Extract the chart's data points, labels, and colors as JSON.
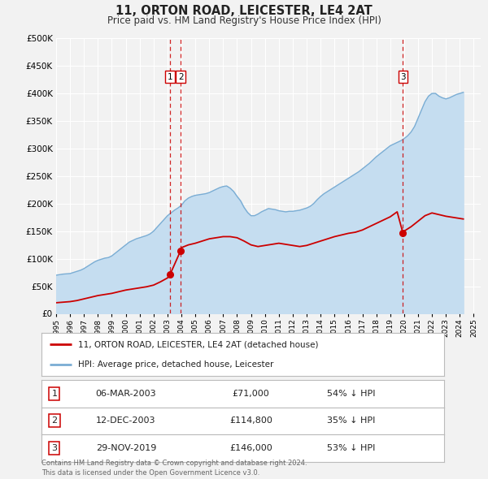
{
  "title": "11, ORTON ROAD, LEICESTER, LE4 2AT",
  "subtitle": "Price paid vs. HM Land Registry's House Price Index (HPI)",
  "ylim": [
    0,
    500000
  ],
  "xlim_start": 1995,
  "xlim_end": 2025.5,
  "bg_color": "#f2f2f2",
  "plot_bg": "#f2f2f2",
  "grid_color": "#ffffff",
  "red_color": "#cc0000",
  "blue_color": "#7aadd4",
  "blue_fill": "#c5ddf0",
  "legend_label_red": "11, ORTON ROAD, LEICESTER, LE4 2AT (detached house)",
  "legend_label_blue": "HPI: Average price, detached house, Leicester",
  "transactions": [
    {
      "num": 1,
      "year": 2003.18,
      "price": 71000,
      "label": "1",
      "marker_y": 71000
    },
    {
      "num": 2,
      "year": 2003.95,
      "price": 114800,
      "label": "2",
      "marker_y": 114800
    },
    {
      "num": 3,
      "year": 2019.92,
      "price": 146000,
      "label": "3",
      "marker_y": 146000
    }
  ],
  "table_rows": [
    {
      "num": "1",
      "date": "06-MAR-2003",
      "price": "£71,000",
      "hpi": "54% ↓ HPI"
    },
    {
      "num": "2",
      "date": "12-DEC-2003",
      "price": "£114,800",
      "hpi": "35% ↓ HPI"
    },
    {
      "num": "3",
      "date": "29-NOV-2019",
      "price": "£146,000",
      "hpi": "53% ↓ HPI"
    }
  ],
  "footer": "Contains HM Land Registry data © Crown copyright and database right 2024.\nThis data is licensed under the Open Government Licence v3.0.",
  "hpi_years": [
    1995,
    1995.25,
    1995.5,
    1995.75,
    1996,
    1996.25,
    1996.5,
    1996.75,
    1997,
    1997.25,
    1997.5,
    1997.75,
    1998,
    1998.25,
    1998.5,
    1998.75,
    1999,
    1999.25,
    1999.5,
    1999.75,
    2000,
    2000.25,
    2000.5,
    2000.75,
    2001,
    2001.25,
    2001.5,
    2001.75,
    2002,
    2002.25,
    2002.5,
    2002.75,
    2003,
    2003.25,
    2003.5,
    2003.75,
    2004,
    2004.25,
    2004.5,
    2004.75,
    2005,
    2005.25,
    2005.5,
    2005.75,
    2006,
    2006.25,
    2006.5,
    2006.75,
    2007,
    2007.25,
    2007.5,
    2007.75,
    2008,
    2008.25,
    2008.5,
    2008.75,
    2009,
    2009.25,
    2009.5,
    2009.75,
    2010,
    2010.25,
    2010.5,
    2010.75,
    2011,
    2011.25,
    2011.5,
    2011.75,
    2012,
    2012.25,
    2012.5,
    2012.75,
    2013,
    2013.25,
    2013.5,
    2013.75,
    2014,
    2014.25,
    2014.5,
    2014.75,
    2015,
    2015.25,
    2015.5,
    2015.75,
    2016,
    2016.25,
    2016.5,
    2016.75,
    2017,
    2017.25,
    2017.5,
    2017.75,
    2018,
    2018.25,
    2018.5,
    2018.75,
    2019,
    2019.25,
    2019.5,
    2019.75,
    2020,
    2020.25,
    2020.5,
    2020.75,
    2021,
    2021.25,
    2021.5,
    2021.75,
    2022,
    2022.25,
    2022.5,
    2022.75,
    2023,
    2023.25,
    2023.5,
    2023.75,
    2024,
    2024.25
  ],
  "hpi_values": [
    70000,
    71000,
    72000,
    72500,
    73000,
    75000,
    77000,
    79000,
    82000,
    86000,
    90000,
    94000,
    97000,
    99000,
    101000,
    102000,
    105000,
    110000,
    115000,
    120000,
    125000,
    130000,
    133000,
    136000,
    138000,
    140000,
    142000,
    145000,
    150000,
    157000,
    164000,
    171000,
    178000,
    183000,
    188000,
    192000,
    197000,
    205000,
    210000,
    213000,
    215000,
    216000,
    217000,
    218000,
    220000,
    223000,
    226000,
    229000,
    231000,
    232000,
    228000,
    222000,
    213000,
    205000,
    193000,
    184000,
    178000,
    178000,
    181000,
    185000,
    188000,
    191000,
    190000,
    189000,
    187000,
    186000,
    185000,
    186000,
    186000,
    187000,
    188000,
    190000,
    192000,
    195000,
    200000,
    207000,
    213000,
    218000,
    222000,
    226000,
    230000,
    234000,
    238000,
    242000,
    246000,
    250000,
    254000,
    258000,
    263000,
    268000,
    273000,
    279000,
    285000,
    290000,
    295000,
    300000,
    305000,
    308000,
    311000,
    314000,
    318000,
    323000,
    330000,
    340000,
    355000,
    370000,
    385000,
    395000,
    400000,
    400000,
    395000,
    392000,
    390000,
    392000,
    395000,
    398000,
    400000,
    402000
  ],
  "red_years": [
    1995,
    1995.5,
    1996,
    1996.5,
    1997,
    1997.5,
    1998,
    1998.5,
    1999,
    1999.5,
    2000,
    2000.5,
    2001,
    2001.5,
    2002,
    2002.5,
    2003.0,
    2003.18,
    2003.95,
    2004,
    2004.5,
    2005,
    2005.5,
    2006,
    2006.5,
    2007,
    2007.5,
    2008,
    2008.5,
    2009,
    2009.5,
    2010,
    2010.5,
    2011,
    2011.5,
    2012,
    2012.5,
    2013,
    2013.5,
    2014,
    2014.5,
    2015,
    2015.5,
    2016,
    2016.5,
    2017,
    2017.5,
    2018,
    2018.5,
    2019,
    2019.5,
    2019.92,
    2020,
    2020.5,
    2021,
    2021.5,
    2022,
    2022.5,
    2023,
    2023.5,
    2024,
    2024.25
  ],
  "red_values": [
    20000,
    21000,
    22000,
    24000,
    27000,
    30000,
    33000,
    35000,
    37000,
    40000,
    43000,
    45000,
    47000,
    49000,
    52000,
    58000,
    65000,
    71000,
    114800,
    120000,
    125000,
    128000,
    132000,
    136000,
    138000,
    140000,
    140000,
    138000,
    132000,
    125000,
    122000,
    124000,
    126000,
    128000,
    126000,
    124000,
    122000,
    124000,
    128000,
    132000,
    136000,
    140000,
    143000,
    146000,
    148000,
    152000,
    158000,
    164000,
    170000,
    176000,
    185000,
    146000,
    150000,
    158000,
    168000,
    178000,
    183000,
    180000,
    177000,
    175000,
    173000,
    172000
  ]
}
